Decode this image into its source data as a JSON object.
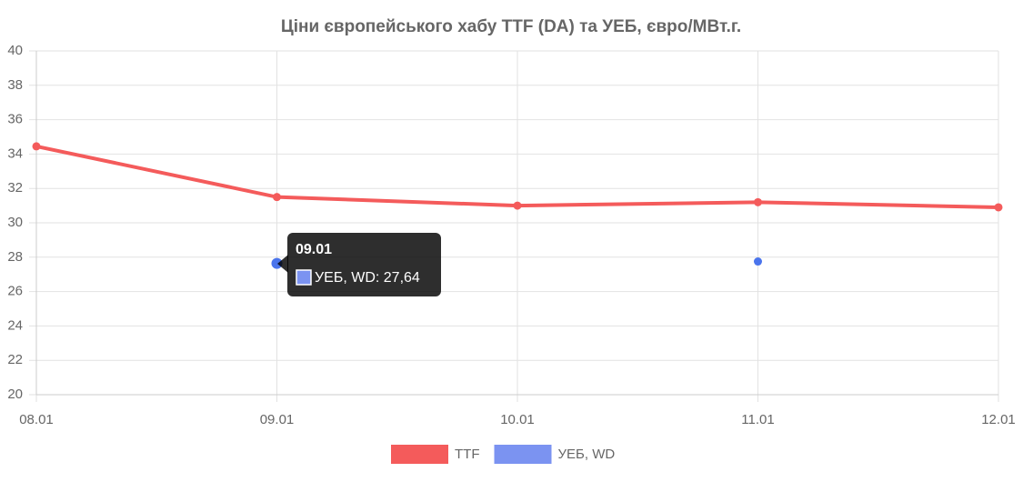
{
  "chart_data": {
    "type": "line",
    "title": "Ціни європейського хабу TTF (DA) та УЕБ, євро/МВт.г.",
    "categories": [
      "08.01",
      "09.01",
      "10.01",
      "11.01",
      "12.01"
    ],
    "series": [
      {
        "name": "TTF",
        "color": "#f45b5b",
        "values": [
          34.45,
          31.5,
          31.0,
          31.2,
          30.9
        ]
      },
      {
        "name": "УЕБ, WD",
        "color": "#7b93f1",
        "values": [
          null,
          27.64,
          null,
          27.75,
          null
        ]
      }
    ],
    "ylim": [
      20,
      40
    ],
    "yticks": [
      20,
      22,
      24,
      26,
      28,
      30,
      32,
      34,
      36,
      38,
      40
    ],
    "grid": true,
    "tooltip": "УЕБ, WD: 27,64"
  }
}
